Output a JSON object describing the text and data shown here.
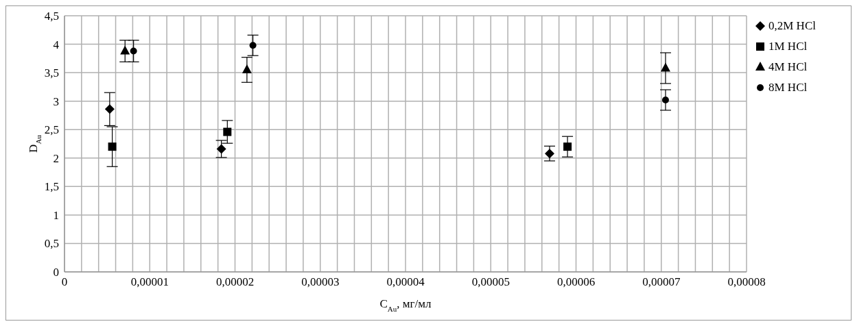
{
  "chart_data": {
    "type": "scatter",
    "xlabel": "C$_{Au}$, мг/мл",
    "ylabel": "D$_{Au}$",
    "series": [
      {
        "name": "0,2M HCl",
        "color": "#000000",
        "marker": "diamond",
        "x": [
          5.3e-06,
          1.84e-05,
          5.69e-05
        ],
        "values": [
          2.86,
          2.16,
          2.08
        ],
        "errors": [
          0.29,
          0.15,
          0.13
        ]
      },
      {
        "name": "1M HCl",
        "color": "#000000",
        "marker": "square",
        "x": [
          5.6e-06,
          1.91e-05,
          5.9e-05
        ],
        "values": [
          2.2,
          2.46,
          2.2
        ],
        "errors": [
          0.35,
          0.2,
          0.18
        ]
      },
      {
        "name": "4M HCl",
        "color": "#000000",
        "marker": "triangle",
        "x": [
          7.1e-06,
          2.14e-05,
          7.05e-05
        ],
        "values": [
          3.88,
          3.55,
          3.58
        ],
        "errors": [
          0.19,
          0.22,
          0.27
        ]
      },
      {
        "name": "8M HCl",
        "color": "#000000",
        "marker": "circle",
        "x": [
          8.1e-06,
          2.21e-05,
          7.05e-05
        ],
        "values": [
          3.88,
          3.98,
          3.02
        ],
        "errors": [
          0.19,
          0.18,
          0.18
        ]
      }
    ],
    "xlim": [
      0,
      8e-05
    ],
    "xticks": [
      0,
      {
        "value": 2e-06,
        "label": null
      },
      {
        "value": 4e-06,
        "label": null
      },
      {
        "value": 6e-06,
        "label": null
      },
      {
        "value": 8e-06,
        "label": null
      },
      {
        "value": 1e-05,
        "label": "0,00001"
      },
      {
        "value": 1.2e-05,
        "label": null
      },
      {
        "value": 1.4e-05,
        "label": null
      },
      {
        "value": 1.6e-05,
        "label": null
      },
      {
        "value": 1.8e-05,
        "label": null
      },
      {
        "value": 2e-05,
        "label": "0,00002"
      },
      {
        "value": 2.2e-05,
        "label": null
      },
      {
        "value": 2.4e-05,
        "label": null
      },
      {
        "value": 2.6e-05,
        "label": null
      },
      {
        "value": 2.8e-05,
        "label": null
      },
      {
        "value": 3e-05,
        "label": "0,00003"
      },
      {
        "value": 3.2e-05,
        "label": null
      },
      {
        "value": 3.4e-05,
        "label": null
      },
      {
        "value": 3.6e-05,
        "label": null
      },
      {
        "value": 3.8e-05,
        "label": null
      },
      {
        "value": 4e-05,
        "label": "0,00004"
      },
      {
        "value": 4.2e-05,
        "label": null
      },
      {
        "value": 4.4e-05,
        "label": null
      },
      {
        "value": 4.6e-05,
        "label": null
      },
      {
        "value": 4.8e-05,
        "label": null
      },
      {
        "value": 5e-05,
        "label": "0,00005"
      },
      {
        "value": 5.2e-05,
        "label": null
      },
      {
        "value": 5.4e-05,
        "label": null
      },
      {
        "value": 5.6e-05,
        "label": null
      },
      {
        "value": 5.8e-05,
        "label": null
      },
      {
        "value": 6e-05,
        "label": "0,00006"
      },
      {
        "value": 6.2e-05,
        "label": null
      },
      {
        "value": 6.4e-05,
        "label": null
      },
      {
        "value": 6.6e-05,
        "label": null
      },
      {
        "value": 6.8e-05,
        "label": null
      },
      {
        "value": 7e-05,
        "label": "0,00007"
      },
      {
        "value": 7.2e-05,
        "label": null
      },
      {
        "value": 7.4e-05,
        "label": null
      },
      {
        "value": 7.6e-05,
        "label": null
      },
      {
        "value": 7.8e-05,
        "label": null
      },
      {
        "value": 8e-05,
        "label": "0,00008"
      }
    ],
    "ylim": [
      0,
      4.5
    ],
    "yticks": [
      0,
      {
        "value": 0.5,
        "label": "0,5"
      },
      1,
      {
        "value": 1.5,
        "label": "1,5"
      },
      2,
      {
        "value": 2.5,
        "label": "2,5"
      },
      3,
      {
        "value": 3.5,
        "label": "3,5"
      },
      4,
      {
        "value": 4.5,
        "label": "4,5"
      }
    ],
    "grid": true,
    "legend": "right"
  }
}
